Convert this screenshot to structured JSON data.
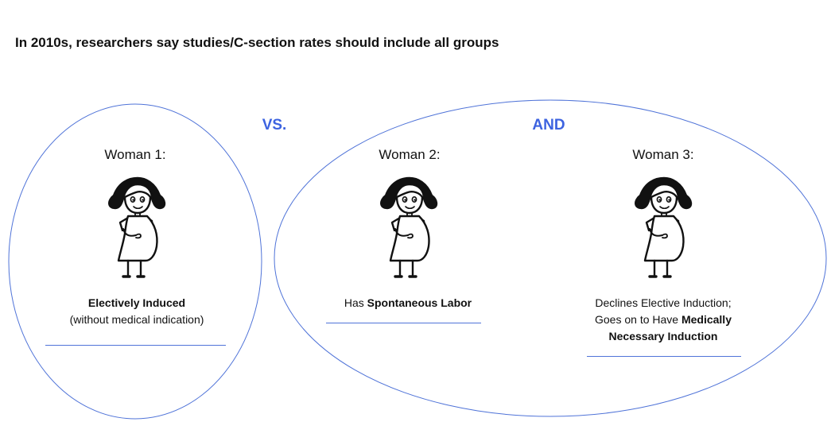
{
  "title": "In 2010s, researchers say studies/C-section rates should include all groups",
  "connectors": {
    "vs": "VS.",
    "and": "AND"
  },
  "accent_color": "#3d63e0",
  "outline_color": "#4f73d8",
  "woman_icon": "pregnant-woman-icon",
  "women": [
    {
      "heading": "Woman 1:",
      "caption": [
        [
          {
            "text": "Electively Induced",
            "bold": true
          }
        ],
        [
          {
            "text": "(without medical indication)",
            "bold": false
          }
        ]
      ]
    },
    {
      "heading": "Woman 2:",
      "caption": [
        [
          {
            "text": "Has ",
            "bold": false
          },
          {
            "text": "Spontaneous Labor",
            "bold": true
          }
        ]
      ]
    },
    {
      "heading": "Woman 3:",
      "caption": [
        [
          {
            "text": "Declines Elective Induction;",
            "bold": false
          }
        ],
        [
          {
            "text": "Goes on to Have ",
            "bold": false
          },
          {
            "text": "Medically",
            "bold": true
          }
        ],
        [
          {
            "text": "Necessary Induction",
            "bold": true
          }
        ]
      ]
    }
  ]
}
